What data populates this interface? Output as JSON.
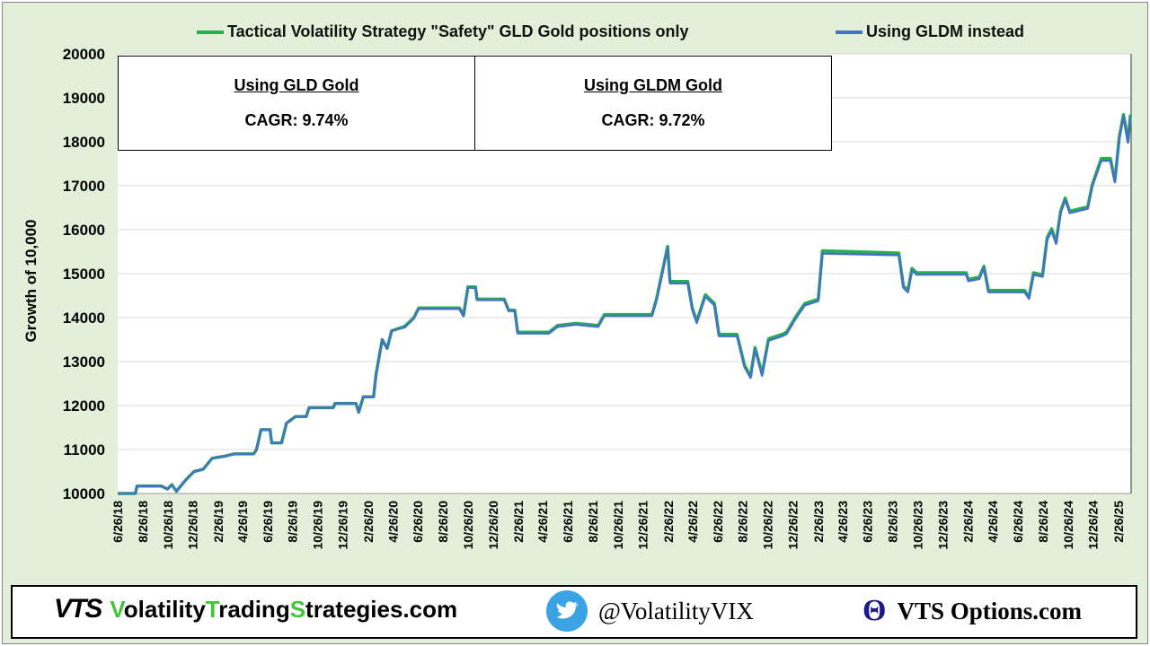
{
  "chart_data": {
    "type": "line",
    "title": "",
    "xlabel": "",
    "ylabel": "Growth of 10,000",
    "ylim": [
      10000,
      20000
    ],
    "yticks": [
      10000,
      11000,
      12000,
      13000,
      14000,
      15000,
      16000,
      17000,
      18000,
      19000,
      20000
    ],
    "xticks": [
      "6/26/18",
      "8/26/18",
      "10/26/18",
      "12/26/18",
      "2/26/19",
      "4/26/19",
      "6/26/19",
      "8/26/19",
      "10/26/19",
      "12/26/19",
      "2/26/20",
      "4/26/20",
      "6/26/20",
      "8/26/20",
      "10/26/20",
      "12/26/20",
      "2/26/21",
      "4/26/21",
      "6/26/21",
      "8/26/21",
      "10/26/21",
      "12/26/21",
      "2/26/22",
      "4/26/22",
      "6/26/22",
      "8/26/22",
      "10/26/22",
      "12/26/22",
      "2/26/23",
      "4/26/23",
      "6/26/23",
      "8/26/23",
      "10/26/23",
      "12/26/23",
      "2/26/24",
      "4/26/24",
      "6/26/24",
      "8/26/24",
      "10/26/24",
      "12/26/24",
      "2/26/25"
    ],
    "grid": true,
    "legend_placement": "top",
    "x": [
      "2018-06-26",
      "2018-08-08",
      "2018-08-12",
      "2018-10-10",
      "2018-10-25",
      "2018-11-05",
      "2018-11-16",
      "2018-12-08",
      "2018-12-29",
      "2019-01-20",
      "2019-02-11",
      "2019-03-14",
      "2019-04-05",
      "2019-05-23",
      "2019-05-30",
      "2019-06-10",
      "2019-07-02",
      "2019-07-06",
      "2019-07-30",
      "2019-08-11",
      "2019-09-02",
      "2019-09-28",
      "2019-10-05",
      "2019-12-03",
      "2019-12-07",
      "2020-01-27",
      "2020-02-03",
      "2020-02-14",
      "2020-03-10",
      "2020-03-16",
      "2020-03-31",
      "2020-04-12",
      "2020-04-23",
      "2020-05-25",
      "2020-06-16",
      "2020-06-28",
      "2020-10-05",
      "2020-10-15",
      "2020-10-26",
      "2020-11-13",
      "2020-11-17",
      "2021-01-22",
      "2021-02-02",
      "2021-02-17",
      "2021-02-24",
      "2021-05-11",
      "2021-06-01",
      "2021-07-15",
      "2021-09-08",
      "2021-09-23",
      "2022-01-17",
      "2022-01-28",
      "2022-02-24",
      "2022-03-02",
      "2022-04-14",
      "2022-04-25",
      "2022-05-06",
      "2022-05-27",
      "2022-06-18",
      "2022-06-29",
      "2022-08-12",
      "2022-08-30",
      "2022-09-14",
      "2022-09-25",
      "2022-10-12",
      "2022-10-28",
      "2022-11-30",
      "2022-12-11",
      "2023-01-02",
      "2023-01-24",
      "2023-02-26",
      "2023-03-08",
      "2023-09-10",
      "2023-09-21",
      "2023-10-02",
      "2023-10-12",
      "2023-10-23",
      "2024-02-21",
      "2024-02-26",
      "2024-03-24",
      "2024-04-04",
      "2024-04-15",
      "2024-07-12",
      "2024-07-23",
      "2024-08-03",
      "2024-08-25",
      "2024-09-05",
      "2024-09-16",
      "2024-09-27",
      "2024-10-08",
      "2024-10-19",
      "2024-10-30",
      "2024-12-13",
      "2024-12-24",
      "2025-01-15",
      "2025-02-06",
      "2025-02-17",
      "2025-02-28",
      "2025-03-10",
      "2025-03-21",
      "2025-03-27"
    ],
    "series": [
      {
        "name": "Tactical Volatility Strategy \"Safety\" GLD Gold positions only",
        "color": "#22b14c",
        "values": [
          10000,
          10000,
          10170,
          10170,
          10100,
          10200,
          10050,
          10300,
          10500,
          10550,
          10800,
          10850,
          10900,
          10900,
          11000,
          11450,
          11450,
          11150,
          11150,
          11600,
          11750,
          11750,
          11950,
          11950,
          12050,
          12050,
          11850,
          12200,
          12200,
          12700,
          13500,
          13300,
          13700,
          13800,
          14000,
          14220,
          14220,
          14050,
          14700,
          14700,
          14420,
          14420,
          14170,
          14170,
          13670,
          13670,
          13820,
          13870,
          13820,
          14070,
          14070,
          14420,
          15620,
          14820,
          14820,
          14220,
          13920,
          14520,
          14320,
          13620,
          13620,
          12920,
          12670,
          13320,
          12720,
          13520,
          13620,
          13670,
          14020,
          14320,
          14420,
          15520,
          15470,
          14720,
          14620,
          15120,
          15020,
          15020,
          14870,
          14920,
          15170,
          14620,
          14620,
          14470,
          15020,
          14970,
          15820,
          16020,
          15720,
          16420,
          16720,
          16420,
          16520,
          17020,
          17620,
          17620,
          17120,
          18120,
          18620,
          18020,
          18620
        ]
      },
      {
        "name": "Using GLDM instead",
        "color": "#4472c4",
        "values": [
          10000,
          10000,
          10170,
          10170,
          10100,
          10200,
          10050,
          10300,
          10500,
          10550,
          10800,
          10850,
          10900,
          10900,
          11000,
          11450,
          11450,
          11150,
          11150,
          11600,
          11750,
          11750,
          11950,
          11950,
          12050,
          12050,
          11850,
          12200,
          12200,
          12700,
          13500,
          13300,
          13700,
          13780,
          13980,
          14200,
          14200,
          14030,
          14680,
          14680,
          14400,
          14400,
          14150,
          14150,
          13640,
          13640,
          13790,
          13840,
          13790,
          14040,
          14040,
          14390,
          15580,
          14780,
          14780,
          14180,
          13880,
          14480,
          14280,
          13580,
          13580,
          12880,
          12630,
          13280,
          12680,
          13480,
          13580,
          13630,
          13980,
          14280,
          14380,
          15460,
          15420,
          14680,
          14580,
          15080,
          14980,
          14980,
          14830,
          14880,
          15130,
          14580,
          14580,
          14430,
          14980,
          14930,
          15770,
          15970,
          15680,
          16380,
          16680,
          16380,
          16480,
          16980,
          17570,
          17570,
          17080,
          18070,
          18580,
          17980,
          18580
        ]
      }
    ]
  },
  "boxes": [
    {
      "title": "Using GLD Gold",
      "value": "CAGR:  9.74%"
    },
    {
      "title": "Using GLDM Gold",
      "value": "CAGR:  9.72%"
    }
  ],
  "footer": {
    "logo": "VTS",
    "site_parts": [
      "V",
      "olatility",
      "T",
      "rading",
      "S",
      "trategies.com"
    ],
    "twitter_icon": "twitter-bird-icon",
    "twitter": "@VolatilityVIX",
    "options_icon": "theta-icon",
    "options_glyph": "Θ",
    "options": "VTS Options.com",
    "accent": "#43c43c",
    "twitter_color": "#3aa3e3",
    "theta_color": "#1a1a8c"
  }
}
